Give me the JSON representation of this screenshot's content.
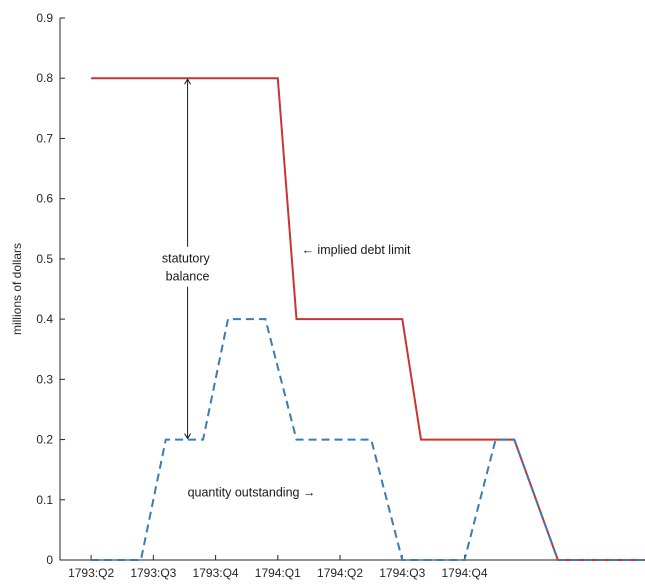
{
  "chart_data": {
    "type": "line",
    "title": "",
    "xlabel": "",
    "ylabel": "millions of dollars",
    "ylim": [
      0,
      0.9
    ],
    "yticks": [
      0,
      0.1,
      0.2,
      0.3,
      0.4,
      0.5,
      0.6,
      0.7,
      0.8,
      0.9
    ],
    "ytick_labels": [
      "0",
      "0.1",
      "0.2",
      "0.3",
      "0.4",
      "0.5",
      "0.6",
      "0.7",
      "0.8",
      "0.9"
    ],
    "xlim": [
      0,
      9.4
    ],
    "xticks": [
      0.5,
      1.5,
      2.5,
      3.5,
      4.5,
      5.5,
      6.5
    ],
    "categories": [
      "1793:Q2",
      "1793:Q3",
      "1793:Q4",
      "1794:Q1",
      "1794:Q2",
      "1794:Q3",
      "1794:Q4"
    ],
    "grid": false,
    "series": [
      {
        "name": "implied debt limit",
        "color": "#cc3333",
        "style": "solid",
        "x": [
          0.5,
          3.5,
          3.8,
          4.5,
          5.0,
          5.5,
          5.8,
          6.5,
          7.0,
          7.3,
          8.0,
          9.4
        ],
        "y": [
          0.8,
          0.8,
          0.4,
          0.4,
          0.4,
          0.4,
          0.2,
          0.2,
          0.2,
          0.2,
          0.0,
          0.0
        ]
      },
      {
        "name": "quantity outstanding",
        "color": "#3b7bb5",
        "style": "dashed",
        "x": [
          0.5,
          1.3,
          1.7,
          2.3,
          2.7,
          3.3,
          3.8,
          4.5,
          5.0,
          5.5,
          5.8,
          6.5,
          7.0,
          7.3,
          8.0,
          9.4
        ],
        "y": [
          0.0,
          0.0,
          0.2,
          0.2,
          0.4,
          0.4,
          0.2,
          0.2,
          0.2,
          0.0,
          0.0,
          0.0,
          0.2,
          0.2,
          0.0,
          0.0
        ]
      }
    ],
    "annotations": [
      {
        "text_lines": [
          "statutory",
          "balance"
        ],
        "arrow": "double",
        "x": 2.05,
        "y_from": 0.2,
        "y_to": 0.8,
        "text_y": 0.487
      },
      {
        "text": "← implied debt limit",
        "x": 3.88,
        "y": 0.515
      },
      {
        "text": "quantity outstanding →",
        "x": 2.05,
        "y": 0.112
      }
    ]
  }
}
